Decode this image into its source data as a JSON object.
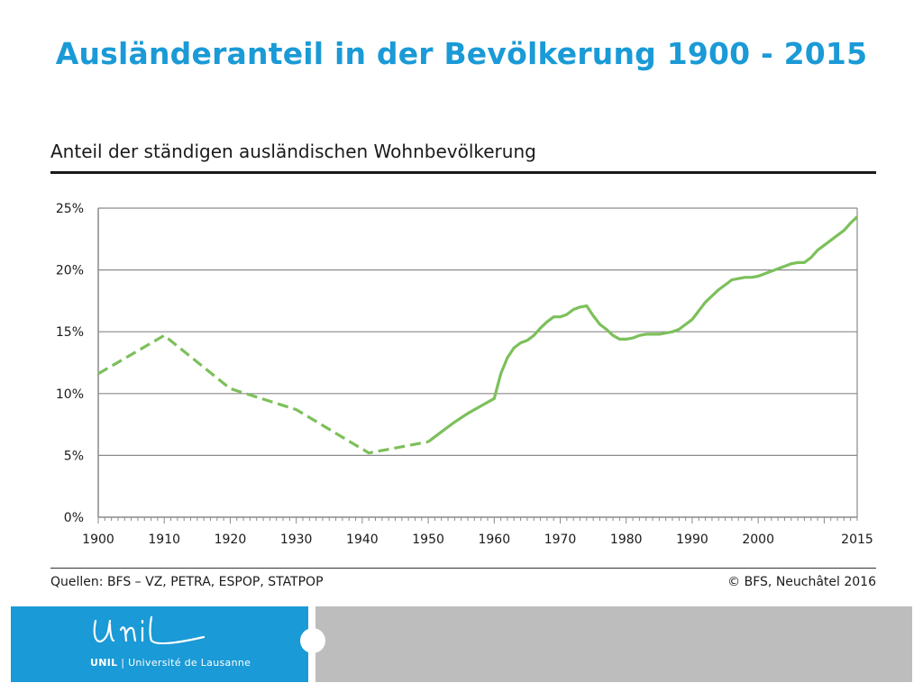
{
  "slide": {
    "title": "Ausländeranteil in der Bevölkerung 1900 - 2015"
  },
  "footer": {
    "source": "Quellen: BFS – VZ, PETRA, ESPOP, STATPOP",
    "copyright": "© BFS, Neuchâtel 2016",
    "logo_script": "Unil",
    "logo_name": "UNIL",
    "logo_separator": "|",
    "logo_subtitle": "Université de Lausanne",
    "colors": {
      "brand_blue": "#1a9ad6",
      "bar_grey": "#bdbdbd"
    }
  },
  "chart_data": {
    "type": "line",
    "title": "Anteil der ständigen ausländischen Wohnbevölkerung",
    "xlim": [
      1900,
      2015
    ],
    "ylim": [
      0,
      25
    ],
    "grid": true,
    "line_color": "#7cc05a",
    "x_tick_labels": [
      "1900",
      "1910",
      "1920",
      "1930",
      "1940",
      "1950",
      "1960",
      "1970",
      "1980",
      "1990",
      "2000",
      "2015"
    ],
    "x_tick_values": [
      1900,
      1910,
      1920,
      1930,
      1940,
      1950,
      1960,
      1970,
      1980,
      1990,
      2000,
      2015
    ],
    "y_tick_labels": [
      "0%",
      "5%",
      "10%",
      "15%",
      "20%",
      "25%"
    ],
    "y_tick_values": [
      0,
      5,
      10,
      15,
      20,
      25
    ],
    "series": [
      {
        "style": "dashed",
        "x": [
          1900,
          1910,
          1920,
          1930,
          1941,
          1950
        ],
        "y": [
          11.6,
          14.7,
          10.4,
          8.7,
          5.2,
          6.1
        ]
      },
      {
        "style": "solid",
        "x": [
          1950,
          1952,
          1954,
          1956,
          1958,
          1960,
          1961,
          1962,
          1963,
          1964,
          1965,
          1966,
          1967,
          1968,
          1969,
          1970,
          1971,
          1972,
          1973,
          1974,
          1975,
          1976,
          1977,
          1978,
          1979,
          1980,
          1981,
          1982,
          1983,
          1984,
          1985,
          1986,
          1987,
          1988,
          1989,
          1990,
          1991,
          1992,
          1993,
          1994,
          1995,
          1996,
          1997,
          1998,
          1999,
          2000,
          2001,
          2002,
          2003,
          2004,
          2005,
          2006,
          2007,
          2008,
          2009,
          2010,
          2011,
          2012,
          2013,
          2014,
          2015
        ],
        "y": [
          6.1,
          6.9,
          7.7,
          8.4,
          9.0,
          9.6,
          11.6,
          12.9,
          13.7,
          14.1,
          14.3,
          14.7,
          15.3,
          15.8,
          16.2,
          16.2,
          16.4,
          16.8,
          17.0,
          17.1,
          16.3,
          15.6,
          15.2,
          14.7,
          14.4,
          14.4,
          14.5,
          14.7,
          14.8,
          14.8,
          14.8,
          14.9,
          15.0,
          15.2,
          15.6,
          16.0,
          16.7,
          17.4,
          17.9,
          18.4,
          18.8,
          19.2,
          19.3,
          19.4,
          19.4,
          19.5,
          19.7,
          19.9,
          20.1,
          20.3,
          20.5,
          20.6,
          20.6,
          21.0,
          21.6,
          22.0,
          22.4,
          22.8,
          23.2,
          23.8,
          24.3
        ]
      }
    ]
  }
}
